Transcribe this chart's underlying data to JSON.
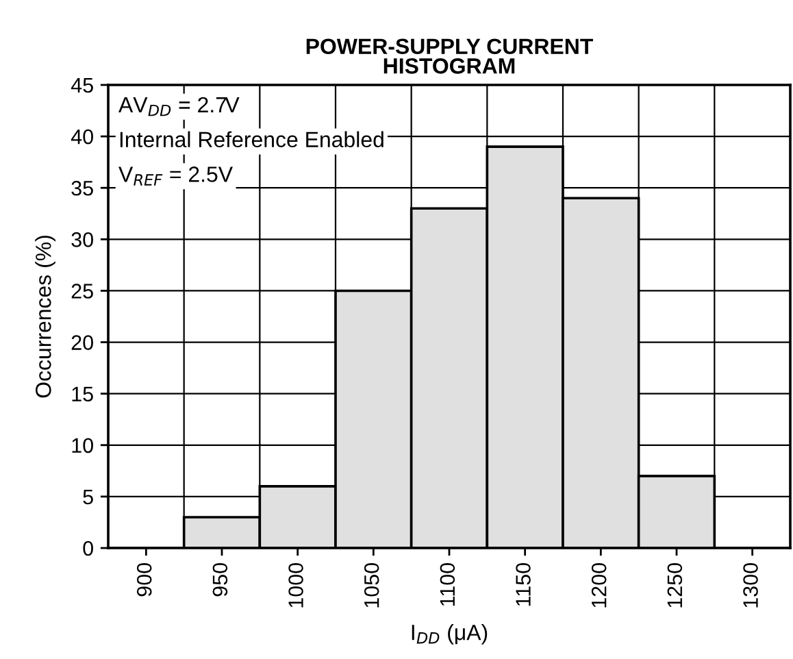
{
  "chart_data": {
    "type": "histogram",
    "title": "POWER-SUPPLY CURRENT\nHISTOGRAM",
    "xlabel": "I$_{DD}$ (μA)",
    "ylabel": "Occurrences (%)",
    "bins": [
      875,
      925,
      975,
      1025,
      1075,
      1125,
      1175,
      1225,
      1275,
      1325
    ],
    "values": [
      0,
      3,
      6,
      25,
      33,
      39,
      34,
      7,
      0
    ],
    "color": "#e0e0e0",
    "xlim": [
      875,
      1325
    ],
    "xticks": [
      900,
      950,
      1000,
      1050,
      1100,
      1150,
      1200,
      1250,
      1300
    ],
    "ylim": [
      0,
      45
    ],
    "yticks": [
      0,
      5,
      10,
      15,
      20,
      25,
      30,
      35,
      40,
      45
    ],
    "grid": true,
    "annotations": [
      "AV$_{DD}$ = 2.7V",
      "Internal Reference Enabled",
      "V$_{REF}$ = 2.5V"
    ]
  }
}
